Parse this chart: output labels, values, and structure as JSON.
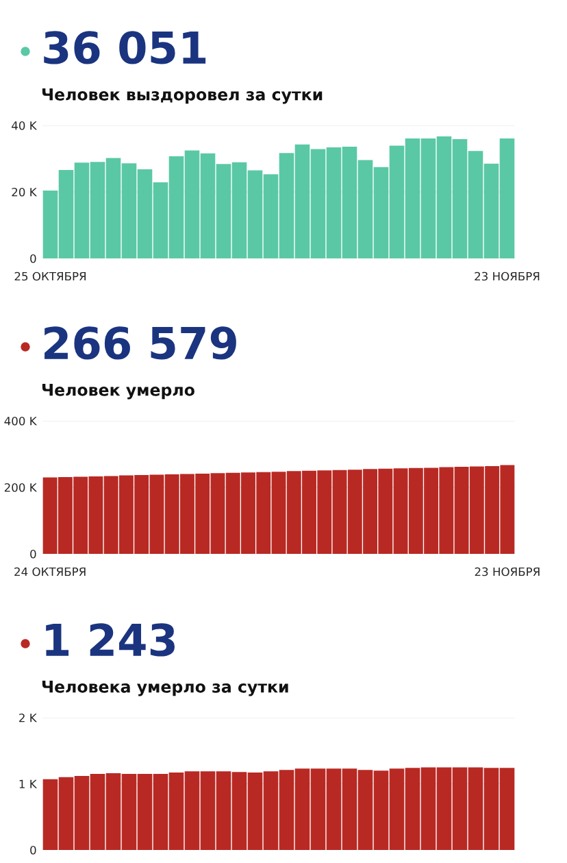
{
  "chart_data": [
    {
      "type": "bar",
      "title": "36 051",
      "subtitle": "Человек выздоровел за сутки",
      "categories": [
        "25 ОКТЯБРЯ",
        null,
        null,
        null,
        null,
        null,
        null,
        null,
        null,
        null,
        null,
        null,
        null,
        null,
        null,
        null,
        null,
        null,
        null,
        null,
        null,
        null,
        null,
        null,
        null,
        null,
        null,
        null,
        null,
        "23 НОЯБРЯ"
      ],
      "series": [
        {
          "color": "#5ac8a5",
          "values": [
            20400,
            26600,
            28800,
            29000,
            30200,
            28600,
            26800,
            22900,
            30700,
            32500,
            31600,
            28400,
            28900,
            26500,
            25300,
            31700,
            34300,
            32900,
            33400,
            33600,
            29600,
            27500,
            33900,
            36100,
            36100,
            36700,
            35900,
            32300,
            28500,
            36100
          ]
        }
      ],
      "ylim": [
        0,
        40000
      ],
      "yticks": [
        {
          "value": 0,
          "label": "0"
        },
        {
          "value": 20000,
          "label": "20 K"
        },
        {
          "value": 40000,
          "label": "40 K"
        }
      ],
      "grid": "y"
    },
    {
      "type": "bar",
      "title": "266 579",
      "subtitle": "Человек умерло",
      "categories": [
        "24 ОКТЯБРЯ",
        null,
        null,
        null,
        null,
        null,
        null,
        null,
        null,
        null,
        null,
        null,
        null,
        null,
        null,
        null,
        null,
        null,
        null,
        null,
        null,
        null,
        null,
        null,
        null,
        null,
        null,
        null,
        null,
        null,
        "23 НОЯБРЯ"
      ],
      "series": [
        {
          "color": "#b92923",
          "values": [
            230000,
            231000,
            232000,
            233000,
            234000,
            236000,
            237000,
            238000,
            239000,
            240000,
            241000,
            243000,
            244000,
            245000,
            246000,
            247000,
            249000,
            250000,
            251000,
            252000,
            253000,
            255000,
            256000,
            257000,
            258000,
            259000,
            261000,
            262000,
            263000,
            264000,
            267000
          ]
        }
      ],
      "ylim": [
        0,
        400000
      ],
      "yticks": [
        {
          "value": 0,
          "label": "0"
        },
        {
          "value": 200000,
          "label": "200 K"
        },
        {
          "value": 400000,
          "label": "400 K"
        }
      ],
      "grid": "y"
    },
    {
      "type": "bar",
      "title": "1 243",
      "subtitle": "Человека умерло за сутки",
      "categories": [
        null,
        null,
        null,
        null,
        null,
        null,
        null,
        null,
        null,
        null,
        null,
        null,
        null,
        null,
        null,
        null,
        null,
        null,
        null,
        null,
        null,
        null,
        null,
        null,
        null,
        null,
        null,
        null,
        null,
        null
      ],
      "series": [
        {
          "color": "#b92923",
          "values": [
            1070,
            1100,
            1120,
            1150,
            1160,
            1150,
            1150,
            1150,
            1170,
            1190,
            1190,
            1190,
            1180,
            1170,
            1190,
            1210,
            1230,
            1230,
            1230,
            1230,
            1210,
            1200,
            1230,
            1240,
            1250,
            1250,
            1250,
            1250,
            1240,
            1240
          ]
        }
      ],
      "ylim": [
        0,
        2000
      ],
      "yticks": [
        {
          "value": 0,
          "label": "0"
        },
        {
          "value": 1000,
          "label": "1 K"
        },
        {
          "value": 2000,
          "label": "2 K"
        }
      ],
      "grid": "y"
    }
  ]
}
